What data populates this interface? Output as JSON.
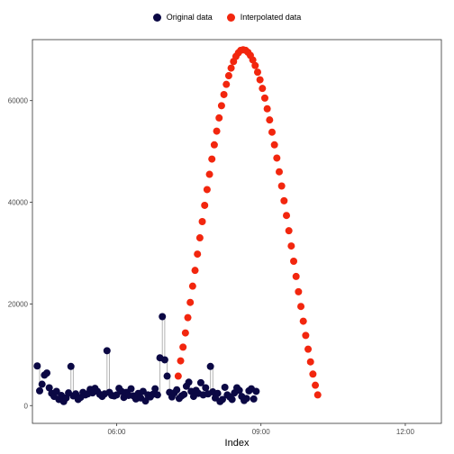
{
  "chart_data": {
    "type": "scatter",
    "title": "",
    "xlabel": "Index",
    "ylabel": "",
    "xlim": [
      4.25,
      12.75
    ],
    "ylim": [
      -3500,
      72000
    ],
    "x_ticks": [
      {
        "value": 6,
        "label": "06:00"
      },
      {
        "value": 9,
        "label": "09:00"
      },
      {
        "value": 12,
        "label": "12:00"
      }
    ],
    "y_ticks": [
      {
        "value": 0,
        "label": "0"
      },
      {
        "value": 20000,
        "label": "20000"
      },
      {
        "value": 40000,
        "label": "40000"
      },
      {
        "value": 60000,
        "label": "60000"
      }
    ],
    "grid": false,
    "legend_position": "top-center",
    "colors": {
      "original": "#0b0844",
      "interpolated": "#f2260e",
      "segment": "#b3b3b3"
    },
    "series": [
      {
        "name": "Original data",
        "values": [
          [
            4.35,
            7800
          ],
          [
            4.4,
            2900
          ],
          [
            4.45,
            4200
          ],
          [
            4.5,
            6000
          ],
          [
            4.55,
            6400
          ],
          [
            4.6,
            3500
          ],
          [
            4.65,
            2400
          ],
          [
            4.7,
            1800
          ],
          [
            4.75,
            2800
          ],
          [
            4.8,
            1200
          ],
          [
            4.85,
            2000
          ],
          [
            4.9,
            800
          ],
          [
            4.95,
            1500
          ],
          [
            5.0,
            2500
          ],
          [
            5.05,
            7700
          ],
          [
            5.1,
            1900
          ],
          [
            5.15,
            2300
          ],
          [
            5.2,
            1200
          ],
          [
            5.25,
            1600
          ],
          [
            5.3,
            2600
          ],
          [
            5.35,
            2100
          ],
          [
            5.4,
            2300
          ],
          [
            5.45,
            3200
          ],
          [
            5.5,
            2500
          ],
          [
            5.55,
            3400
          ],
          [
            5.6,
            2800
          ],
          [
            5.65,
            2200
          ],
          [
            5.7,
            1800
          ],
          [
            5.75,
            2300
          ],
          [
            5.8,
            10800
          ],
          [
            5.85,
            2600
          ],
          [
            5.9,
            2000
          ],
          [
            5.95,
            1900
          ],
          [
            6.0,
            2100
          ],
          [
            6.05,
            3400
          ],
          [
            6.1,
            2800
          ],
          [
            6.15,
            1600
          ],
          [
            6.2,
            2600
          ],
          [
            6.25,
            2000
          ],
          [
            6.3,
            3300
          ],
          [
            6.35,
            1900
          ],
          [
            6.4,
            1300
          ],
          [
            6.45,
            2400
          ],
          [
            6.5,
            1500
          ],
          [
            6.55,
            2800
          ],
          [
            6.6,
            900
          ],
          [
            6.65,
            2100
          ],
          [
            6.7,
            1700
          ],
          [
            6.75,
            2200
          ],
          [
            6.8,
            3300
          ],
          [
            6.85,
            2100
          ],
          [
            6.9,
            9400
          ],
          [
            6.95,
            17500
          ],
          [
            7.0,
            9000
          ],
          [
            7.05,
            5800
          ],
          [
            7.1,
            2600
          ],
          [
            7.15,
            1700
          ],
          [
            7.2,
            2500
          ],
          [
            7.25,
            3100
          ],
          [
            7.3,
            1400
          ],
          [
            7.35,
            1900
          ],
          [
            7.4,
            2200
          ],
          [
            7.45,
            3800
          ],
          [
            7.5,
            4600
          ],
          [
            7.55,
            2800
          ],
          [
            7.6,
            1800
          ],
          [
            7.65,
            3000
          ],
          [
            7.7,
            2400
          ],
          [
            7.75,
            4500
          ],
          [
            7.8,
            2100
          ],
          [
            7.85,
            3500
          ],
          [
            7.9,
            2300
          ],
          [
            7.95,
            7700
          ],
          [
            8.0,
            2700
          ],
          [
            8.05,
            1500
          ],
          [
            8.1,
            2400
          ],
          [
            8.15,
            800
          ],
          [
            8.2,
            1200
          ],
          [
            8.25,
            3600
          ],
          [
            8.3,
            2100
          ],
          [
            8.35,
            1700
          ],
          [
            8.4,
            1200
          ],
          [
            8.45,
            2500
          ],
          [
            8.5,
            3500
          ],
          [
            8.55,
            3000
          ],
          [
            8.6,
            1800
          ],
          [
            8.65,
            1000
          ],
          [
            8.7,
            1400
          ],
          [
            8.75,
            2900
          ],
          [
            8.8,
            3300
          ],
          [
            8.85,
            1300
          ],
          [
            8.9,
            2800
          ]
        ]
      },
      {
        "name": "Interpolated data",
        "values": [
          [
            7.28,
            5800
          ],
          [
            7.33,
            8800
          ],
          [
            7.38,
            11500
          ],
          [
            7.43,
            14300
          ],
          [
            7.48,
            17300
          ],
          [
            7.53,
            20300
          ],
          [
            7.58,
            23500
          ],
          [
            7.63,
            26600
          ],
          [
            7.68,
            29800
          ],
          [
            7.73,
            33000
          ],
          [
            7.78,
            36200
          ],
          [
            7.83,
            39400
          ],
          [
            7.88,
            42500
          ],
          [
            7.93,
            45500
          ],
          [
            7.98,
            48500
          ],
          [
            8.03,
            51300
          ],
          [
            8.08,
            54000
          ],
          [
            8.13,
            56600
          ],
          [
            8.18,
            59000
          ],
          [
            8.23,
            61200
          ],
          [
            8.28,
            63200
          ],
          [
            8.33,
            64900
          ],
          [
            8.38,
            66400
          ],
          [
            8.43,
            67700
          ],
          [
            8.48,
            68700
          ],
          [
            8.53,
            69400
          ],
          [
            8.58,
            69900
          ],
          [
            8.63,
            70000
          ],
          [
            8.68,
            69900
          ],
          [
            8.73,
            69500
          ],
          [
            8.78,
            68900
          ],
          [
            8.83,
            68000
          ],
          [
            8.88,
            66900
          ],
          [
            8.93,
            65600
          ],
          [
            8.98,
            64100
          ],
          [
            9.03,
            62400
          ],
          [
            9.08,
            60500
          ],
          [
            9.13,
            58400
          ],
          [
            9.18,
            56200
          ],
          [
            9.23,
            53800
          ],
          [
            9.28,
            51300
          ],
          [
            9.33,
            48700
          ],
          [
            9.38,
            46000
          ],
          [
            9.43,
            43200
          ],
          [
            9.48,
            40300
          ],
          [
            9.53,
            37400
          ],
          [
            9.58,
            34400
          ],
          [
            9.63,
            31400
          ],
          [
            9.68,
            28400
          ],
          [
            9.73,
            25400
          ],
          [
            9.78,
            22400
          ],
          [
            9.83,
            19500
          ],
          [
            9.88,
            16600
          ],
          [
            9.93,
            13800
          ],
          [
            9.98,
            11100
          ],
          [
            10.03,
            8600
          ],
          [
            10.08,
            6200
          ],
          [
            10.13,
            4000
          ],
          [
            10.18,
            2100
          ]
        ]
      }
    ]
  }
}
